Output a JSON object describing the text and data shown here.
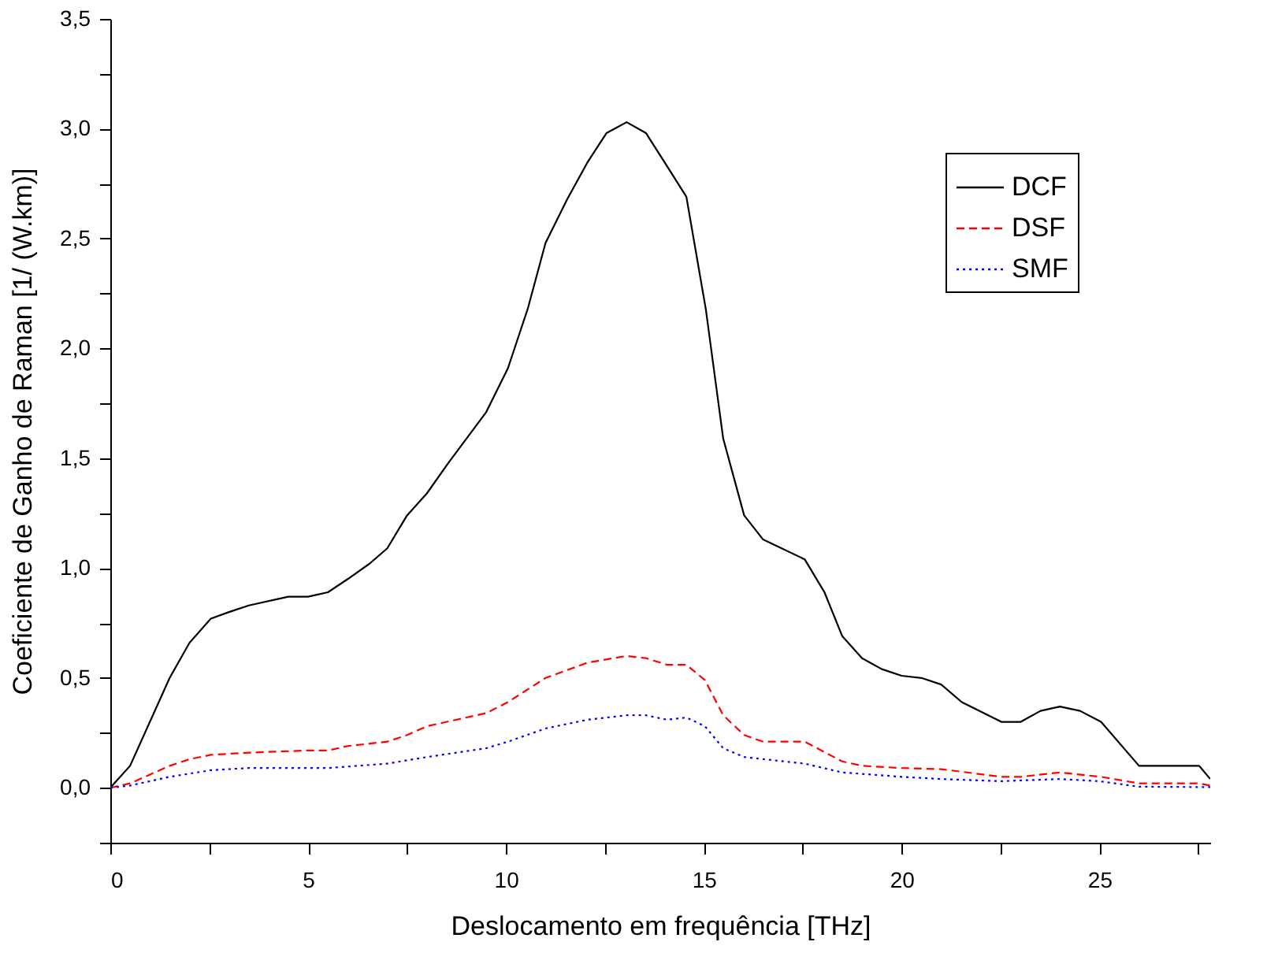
{
  "chart_data": {
    "type": "line",
    "xlabel": "Deslocamento em frequência [THz]",
    "ylabel": "Coeficiente de Ganho de Raman [1/ (W.km)]",
    "xlim": [
      0,
      27.8
    ],
    "ylim": [
      -0.25,
      3.5
    ],
    "xticks": [
      0,
      {
        "value": 2.5,
        "label": null
      },
      5,
      {
        "value": 7.5,
        "label": null
      },
      10,
      {
        "value": 12.5,
        "label": null
      },
      15,
      {
        "value": 17.5,
        "label": null
      },
      20,
      {
        "value": 22.5,
        "label": null
      },
      25,
      {
        "value": 27.5,
        "label": null
      }
    ],
    "yticks": [
      {
        "value": -0.25,
        "label": null
      },
      {
        "value": 0,
        "label": "0,0"
      },
      {
        "value": 0.25,
        "label": null
      },
      {
        "value": 0.5,
        "label": "0,5"
      },
      {
        "value": 0.75,
        "label": null
      },
      {
        "value": 1,
        "label": "1,0"
      },
      {
        "value": 1.25,
        "label": null
      },
      {
        "value": 1.5,
        "label": "1,5"
      },
      {
        "value": 1.75,
        "label": null
      },
      {
        "value": 2,
        "label": "2,0"
      },
      {
        "value": 2.25,
        "label": null
      },
      {
        "value": 2.5,
        "label": "2,5"
      },
      {
        "value": 2.75,
        "label": null
      },
      {
        "value": 3,
        "label": "3,0"
      },
      {
        "value": 3.25,
        "label": null
      },
      {
        "value": 3.5,
        "label": "3,5"
      }
    ],
    "grid": false,
    "legend": "top right",
    "marker": "none",
    "series": [
      {
        "name": "DCF",
        "color": "#000000",
        "line_style": "solid",
        "x": [
          0,
          0.5,
          1.5,
          2,
          2.54,
          3,
          3.5,
          4.5,
          5,
          5.5,
          6,
          6.55,
          7,
          7.5,
          8,
          8.55,
          9.5,
          10.05,
          10.55,
          11,
          11.55,
          12.07,
          12.54,
          13.05,
          13.54,
          14.07,
          14.56,
          15.05,
          15.49,
          16.02,
          16.5,
          17.55,
          18.05,
          18.5,
          19,
          19.5,
          20,
          20.5,
          21,
          21.52,
          22.52,
          23.01,
          23.51,
          24,
          24.51,
          25.04,
          26,
          27.52,
          27.8
        ],
        "values": [
          0,
          0.1,
          0.5,
          0.66,
          0.77,
          0.8,
          0.83,
          0.87,
          0.87,
          0.89,
          0.95,
          1.02,
          1.09,
          1.24,
          1.34,
          1.48,
          1.71,
          1.91,
          2.18,
          2.48,
          2.68,
          2.85,
          2.98,
          3.03,
          2.98,
          2.83,
          2.69,
          2.18,
          1.59,
          1.24,
          1.13,
          1.04,
          0.89,
          0.69,
          0.59,
          0.54,
          0.51,
          0.5,
          0.47,
          0.39,
          0.3,
          0.3,
          0.35,
          0.37,
          0.35,
          0.3,
          0.1,
          0.1,
          0.04
        ]
      },
      {
        "name": "DSF",
        "color": "#ff0000",
        "line_style": "dashed",
        "x": [
          0,
          0.5,
          1.5,
          2,
          2.54,
          3.5,
          5,
          5.5,
          6,
          7,
          7.5,
          8,
          9.5,
          10.05,
          11,
          12.07,
          13.05,
          13.54,
          14.07,
          14.56,
          15.03,
          15.49,
          16.02,
          16.5,
          17.55,
          18.5,
          19,
          20,
          21,
          22.52,
          23.01,
          24,
          25.04,
          26,
          27.52,
          27.8
        ],
        "values": [
          0,
          0.02,
          0.1,
          0.13,
          0.15,
          0.16,
          0.17,
          0.17,
          0.19,
          0.21,
          0.24,
          0.28,
          0.34,
          0.39,
          0.5,
          0.57,
          0.6,
          0.59,
          0.56,
          0.56,
          0.49,
          0.33,
          0.24,
          0.21,
          0.21,
          0.12,
          0.1,
          0.09,
          0.085,
          0.05,
          0.05,
          0.07,
          0.05,
          0.02,
          0.02,
          0.01
        ]
      },
      {
        "name": "SMF",
        "color": "#0000ff",
        "line_style": "dotted",
        "x": [
          0,
          0.5,
          1.5,
          2.54,
          3.5,
          5,
          5.5,
          7,
          8,
          9.5,
          10.05,
          11,
          12.07,
          13.05,
          13.54,
          14.07,
          14.56,
          15.03,
          15.49,
          16.02,
          17.55,
          18.5,
          20,
          21,
          22.5,
          24,
          25,
          26,
          27.8
        ],
        "values": [
          0,
          0.01,
          0.05,
          0.08,
          0.09,
          0.09,
          0.09,
          0.11,
          0.14,
          0.18,
          0.21,
          0.27,
          0.31,
          0.33,
          0.33,
          0.31,
          0.32,
          0.28,
          0.18,
          0.14,
          0.11,
          0.07,
          0.05,
          0.04,
          0.03,
          0.04,
          0.03,
          0.005,
          0.003
        ]
      }
    ]
  }
}
